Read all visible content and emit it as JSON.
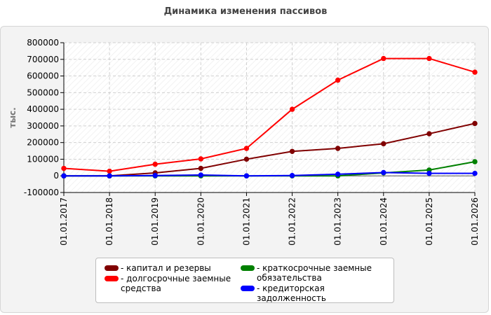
{
  "title": "Динамика изменения пассивов",
  "chart_data": {
    "type": "line",
    "categories": [
      "01.01.2017",
      "01.01.2018",
      "01.01.2019",
      "01.01.2020",
      "01.01.2021",
      "01.01.2022",
      "01.01.2023",
      "01.01.2024",
      "01.01.2025",
      "01.01.2026"
    ],
    "ylabel": "тыс.",
    "xlabel": "",
    "ylim": [
      -100000,
      800000
    ],
    "yticks": [
      "800000",
      "700000",
      "600000",
      "500000",
      "400000",
      "300000",
      "200000",
      "100000",
      "0",
      "-100000"
    ],
    "grid": true,
    "legend_position": "bottom",
    "series": [
      {
        "name": "капитал и резервы",
        "color": "#800000",
        "values": [
          0,
          0,
          18000,
          45000,
          100000,
          147000,
          165000,
          193000,
          253000,
          315000
        ]
      },
      {
        "name": "долгосрочные заемные средства",
        "color": "#ff0000",
        "values": [
          45000,
          28000,
          70000,
          102000,
          165000,
          400000,
          575000,
          705000,
          705000,
          623000
        ]
      },
      {
        "name": "краткосрочные заемные обязательства",
        "color": "#008000",
        "values": [
          0,
          0,
          0,
          0,
          0,
          0,
          0,
          18000,
          35000,
          85000
        ]
      },
      {
        "name": "кредиторская задолженность",
        "color": "#0000ff",
        "values": [
          0,
          0,
          2000,
          5000,
          0,
          2000,
          10000,
          20000,
          15000,
          15000
        ]
      }
    ]
  },
  "legend": {
    "items": [
      {
        "label": "- капитал и резервы",
        "color": "#800000"
      },
      {
        "label": "- долгосрочные заемные\nсредства",
        "color": "#ff0000"
      },
      {
        "label": "- краткосрочные заемные\nобязательства",
        "color": "#008000"
      },
      {
        "label": "- кредиторская задолженность",
        "color": "#0000ff"
      }
    ]
  }
}
